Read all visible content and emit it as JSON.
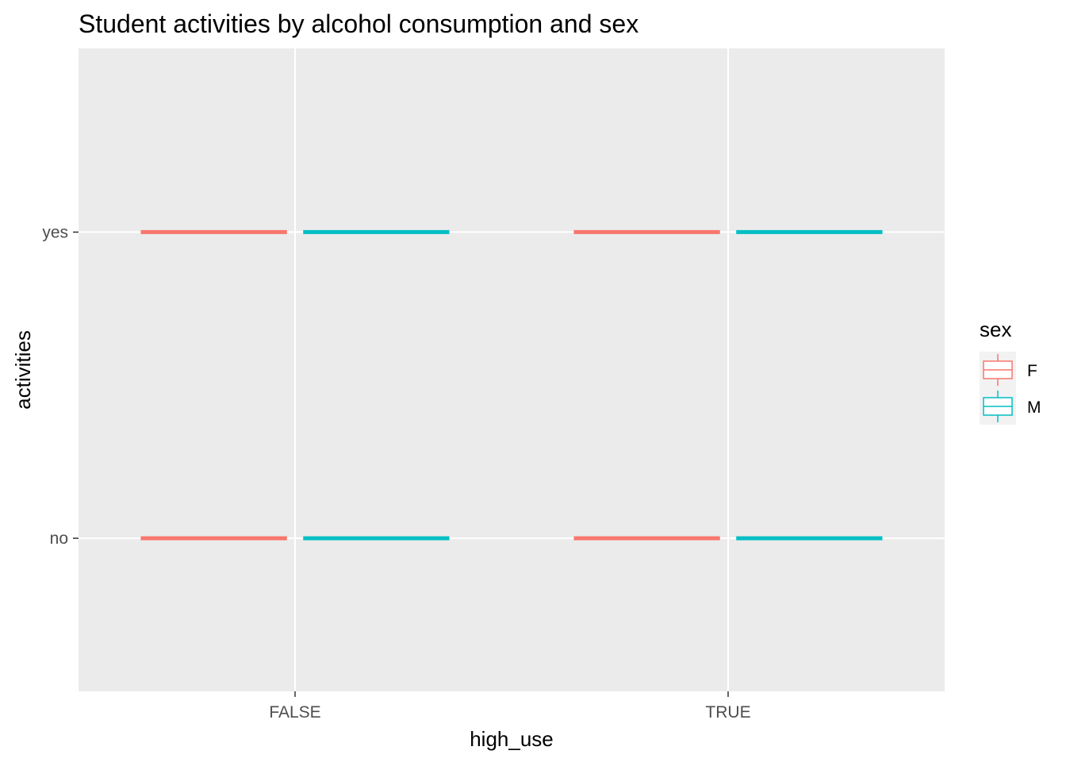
{
  "chart_data": {
    "type": "box",
    "title": "Student activities by alcohol consumption and sex",
    "xlabel": "high_use",
    "ylabel": "activities",
    "categories": [
      "FALSE",
      "TRUE"
    ],
    "y_levels": [
      "no",
      "yes"
    ],
    "ylim": [
      0.5,
      2.6
    ],
    "grid": true,
    "legend": {
      "title": "sex",
      "position": "right",
      "entries": [
        "F",
        "M"
      ]
    },
    "series": [
      {
        "name": "F",
        "color": "#F8766D",
        "boxes": [
          {
            "x": "FALSE",
            "y_level": "no"
          },
          {
            "x": "FALSE",
            "y_level": "yes"
          },
          {
            "x": "TRUE",
            "y_level": "no"
          },
          {
            "x": "TRUE",
            "y_level": "yes"
          }
        ]
      },
      {
        "name": "M",
        "color": "#00BFC4",
        "boxes": [
          {
            "x": "FALSE",
            "y_level": "no"
          },
          {
            "x": "FALSE",
            "y_level": "yes"
          },
          {
            "x": "TRUE",
            "y_level": "no"
          },
          {
            "x": "TRUE",
            "y_level": "yes"
          }
        ]
      }
    ]
  }
}
